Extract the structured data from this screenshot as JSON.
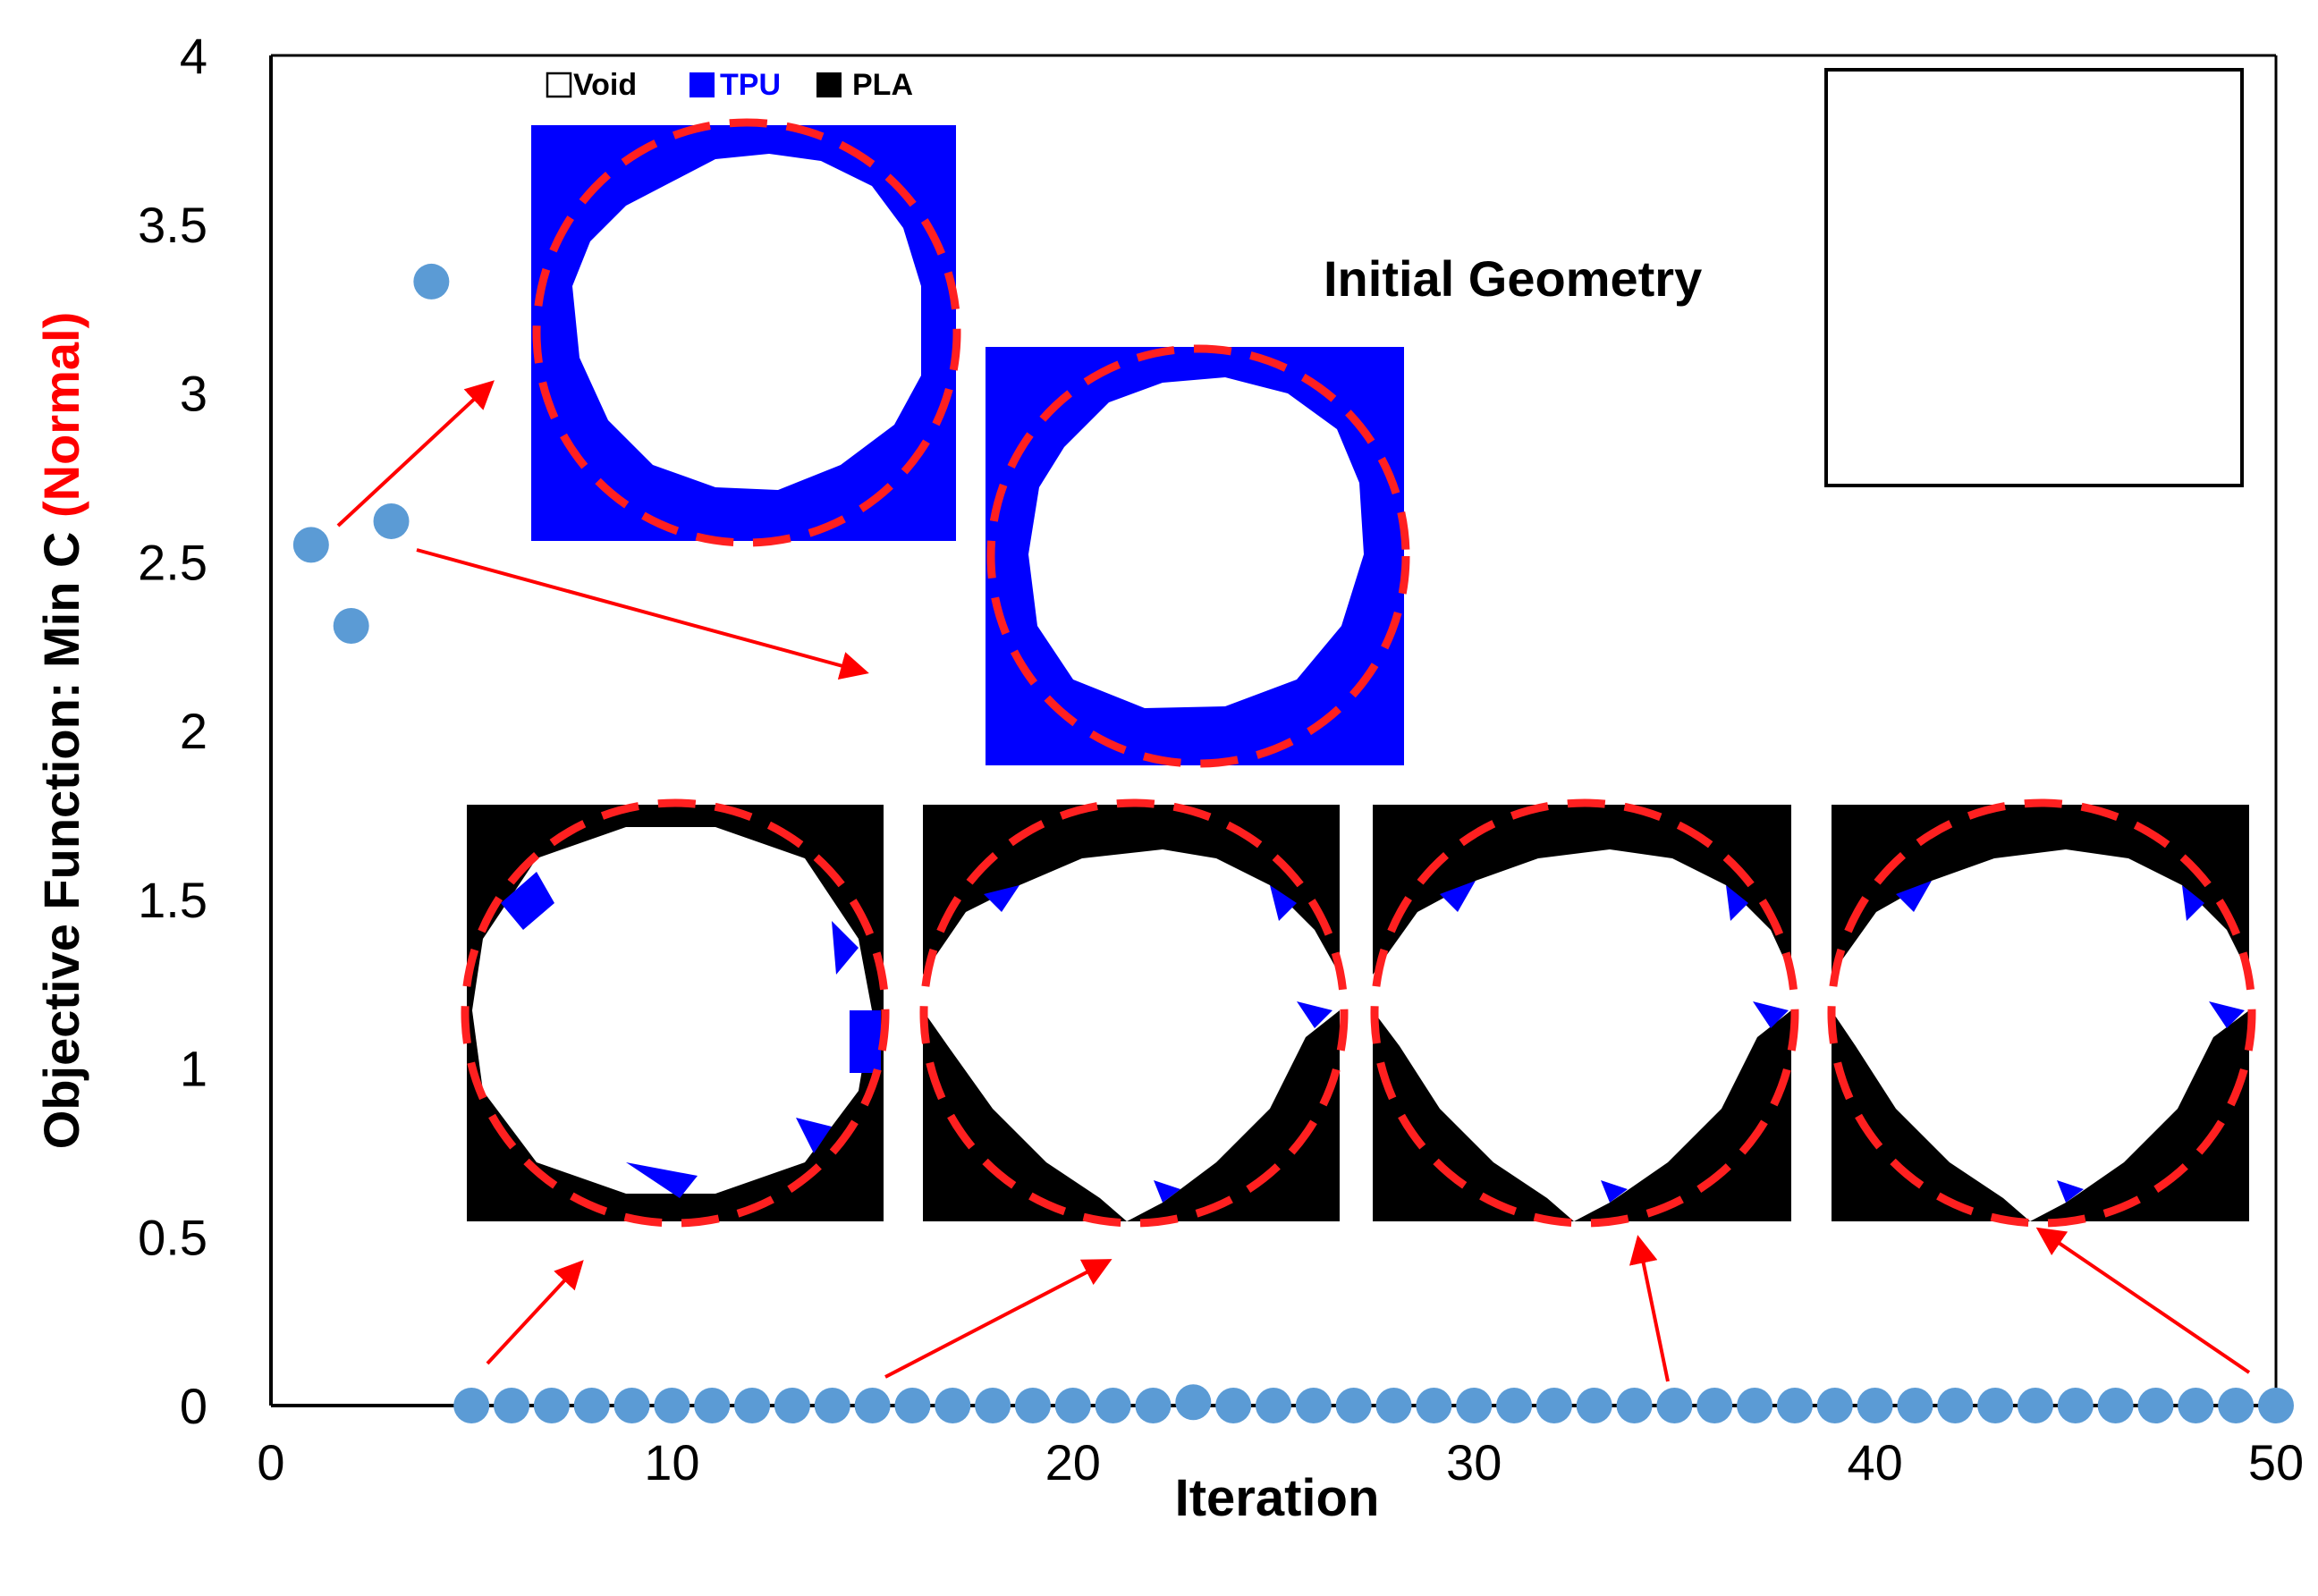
{
  "chart_data": {
    "type": "scatter",
    "xlabel": "Iteration",
    "ylabel_main": "Objective Function: Min C ",
    "ylabel_highlight": "(Normal)",
    "xlim": [
      0,
      50
    ],
    "ylim": [
      0,
      4
    ],
    "x_ticks": [
      "0",
      "10",
      "20",
      "30",
      "40",
      "50"
    ],
    "y_ticks": [
      "0",
      "0.5",
      "1",
      "1.5",
      "2",
      "2.5",
      "3",
      "3.5",
      "4"
    ],
    "grid": false,
    "series": [
      {
        "x": [
          1,
          2,
          3,
          4,
          5,
          6,
          7,
          8,
          9,
          10,
          11,
          12,
          13,
          14,
          15,
          16,
          17,
          18,
          19,
          20,
          21,
          22,
          23,
          24,
          25,
          26,
          27,
          28,
          29,
          30,
          31,
          32,
          33,
          34,
          35,
          36,
          37,
          38,
          39,
          40,
          41,
          42,
          43,
          44,
          45,
          46,
          47,
          48,
          49,
          50
        ],
        "y": [
          2.55,
          2.31,
          2.62,
          3.33,
          0,
          0,
          0,
          0,
          0,
          0,
          0,
          0,
          0,
          0,
          0,
          0,
          0,
          0,
          0,
          0,
          0,
          0,
          0.01,
          0,
          0,
          0,
          0,
          0,
          0,
          0,
          0,
          0,
          0,
          0,
          0,
          0,
          0,
          0,
          0,
          0,
          0,
          0,
          0,
          0,
          0,
          0,
          0,
          0,
          0,
          0
        ]
      }
    ],
    "legend": [
      {
        "label": "Void",
        "color": "#ffffff"
      },
      {
        "label": "TPU",
        "color": "#0000ff"
      },
      {
        "label": "PLA",
        "color": "#000000"
      }
    ],
    "annotation": "Initial Geometry",
    "colors": {
      "marker": "#5b9bd5",
      "arrow": "#ff0000",
      "circle": "#ff2020",
      "tpu": "#0000ff",
      "pla": "#000000",
      "highlight": "#ff0000"
    }
  }
}
